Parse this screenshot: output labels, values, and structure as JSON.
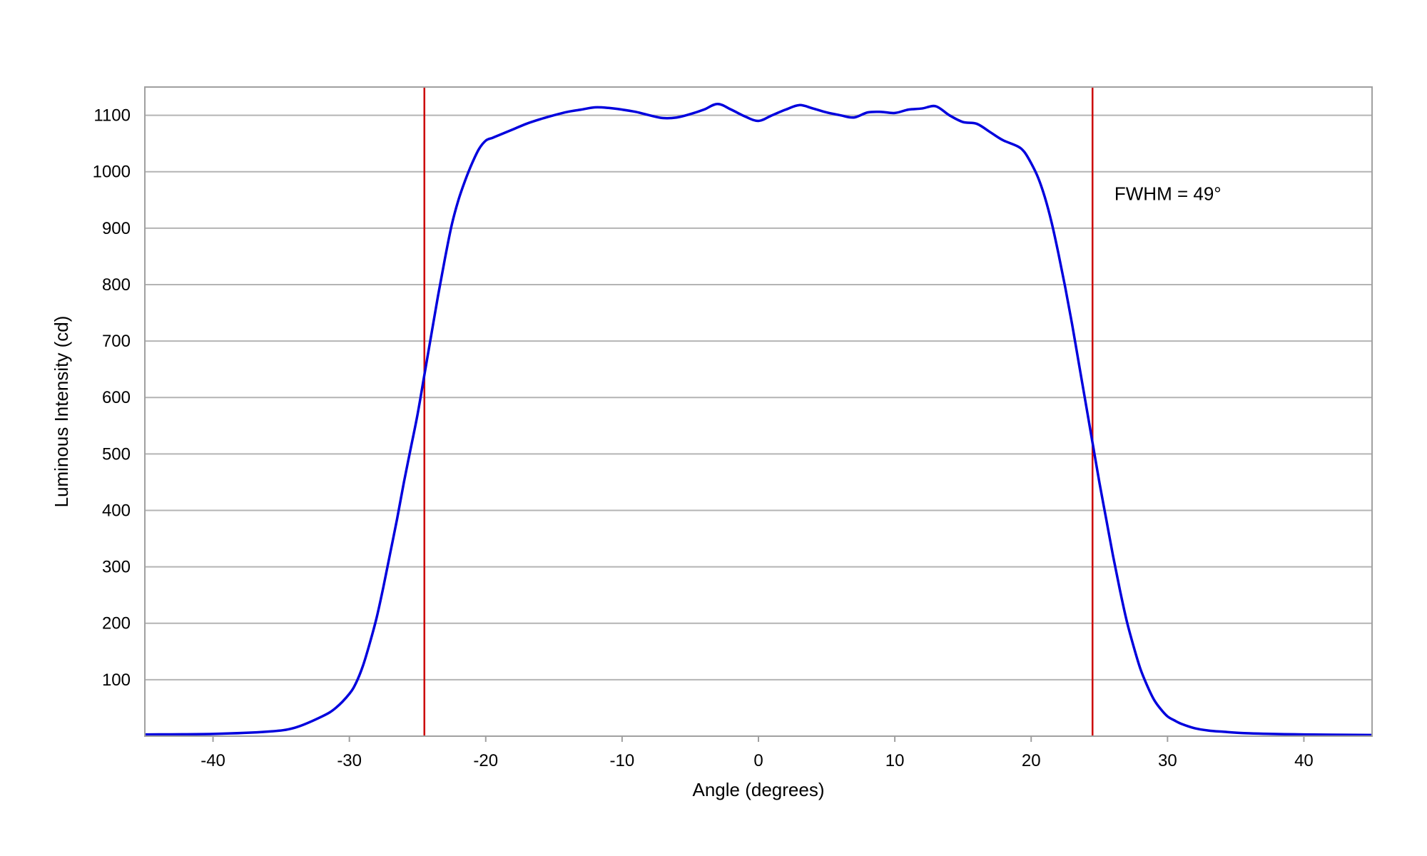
{
  "chart_data": {
    "type": "line",
    "title": "",
    "xlabel": "Angle (degrees)",
    "ylabel": "Luminous Intensity (cd)",
    "xlim": [
      -45,
      45
    ],
    "ylim": [
      0,
      1150
    ],
    "xticks": [
      -40,
      -30,
      -20,
      -10,
      0,
      10,
      20,
      30,
      40
    ],
    "yticks": [
      100,
      200,
      300,
      400,
      500,
      600,
      700,
      800,
      900,
      1000,
      1100
    ],
    "grid": "horizontal",
    "legend": "none",
    "series": [
      {
        "color": "#0000dd",
        "x": [
          -45,
          -40,
          -36,
          -34,
          -32,
          -31,
          -30,
          -29.5,
          -29,
          -28.5,
          -28,
          -27.5,
          -27,
          -26.5,
          -26,
          -25.5,
          -25,
          -24.5,
          -24,
          -23.5,
          -23,
          -22.5,
          -22,
          -21.5,
          -21,
          -20.5,
          -20,
          -19.5,
          -19,
          -18,
          -17,
          -16,
          -15,
          -14,
          -13,
          -12,
          -11,
          -10,
          -9,
          -8,
          -7,
          -6,
          -5,
          -4,
          -3,
          -2,
          -1,
          0,
          1,
          2,
          3,
          4,
          5,
          6,
          7,
          8,
          9,
          10,
          11,
          12,
          13,
          14,
          15,
          16,
          17,
          17.5,
          18,
          19,
          19.5,
          20,
          20.5,
          21,
          21.5,
          22,
          22.5,
          23,
          23.5,
          24,
          24.5,
          25,
          25.5,
          26,
          26.5,
          27,
          27.5,
          28,
          28.5,
          29,
          29.5,
          30,
          30.5,
          31,
          32,
          33,
          34,
          36,
          40,
          45
        ],
        "values": [
          3,
          4,
          8,
          15,
          35,
          50,
          75,
          95,
          125,
          165,
          210,
          265,
          325,
          385,
          450,
          510,
          570,
          640,
          710,
          780,
          845,
          905,
          950,
          985,
          1015,
          1040,
          1055,
          1060,
          1065,
          1075,
          1085,
          1093,
          1100,
          1106,
          1110,
          1114,
          1113,
          1110,
          1106,
          1100,
          1095,
          1096,
          1102,
          1110,
          1120,
          1110,
          1098,
          1090,
          1100,
          1110,
          1118,
          1112,
          1105,
          1100,
          1096,
          1105,
          1106,
          1104,
          1110,
          1112,
          1116,
          1100,
          1088,
          1085,
          1070,
          1062,
          1055,
          1045,
          1035,
          1015,
          990,
          955,
          910,
          855,
          795,
          730,
          660,
          590,
          520,
          450,
          385,
          320,
          260,
          205,
          160,
          120,
          90,
          65,
          48,
          35,
          28,
          22,
          14,
          10,
          8,
          5,
          3,
          2
        ]
      }
    ],
    "vlines": [
      {
        "x": -24.5,
        "color": "#cc0000"
      },
      {
        "x": 24.5,
        "color": "#cc0000"
      }
    ],
    "annotations": [
      {
        "text": "FWHM = 49°",
        "x": 26,
        "y": 950
      }
    ]
  }
}
